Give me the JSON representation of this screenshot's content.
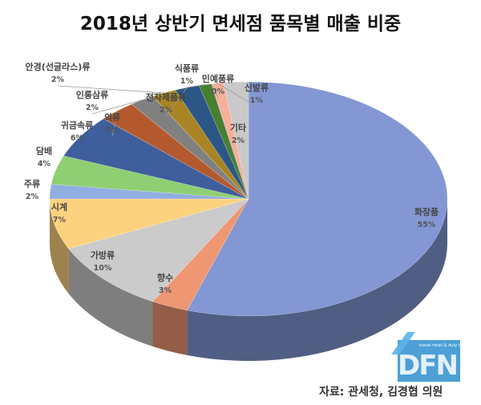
{
  "title": "2018년 상반기 면세점 품목별 매출 비중",
  "source": "자료: 관세청, 김경협 의원",
  "logo": {
    "text": "DFN",
    "tagline": "travel retail & duty free news"
  },
  "chart_data": {
    "type": "pie",
    "title": "2018년 상반기 면세점 품목별 매출 비중",
    "slices": [
      {
        "label": "화장품",
        "value": 55,
        "value_label": "55%",
        "color": "#8297d4"
      },
      {
        "label": "향수",
        "value": 3,
        "value_label": "3%",
        "color": "#ef9673"
      },
      {
        "label": "가방류",
        "value": 10,
        "value_label": "10%",
        "color": "#cbcbcb"
      },
      {
        "label": "시계",
        "value": 7,
        "value_label": "7%",
        "color": "#fdd27e"
      },
      {
        "label": "주류",
        "value": 2,
        "value_label": "2%",
        "color": "#90aee0"
      },
      {
        "label": "담배",
        "value": 4,
        "value_label": "4%",
        "color": "#8fce73"
      },
      {
        "label": "귀금속류",
        "value": 6,
        "value_label": "6%",
        "color": "#3f5e9c"
      },
      {
        "label": "의류",
        "value": 3,
        "value_label": "3%",
        "color": "#b4592e"
      },
      {
        "label": "인롱삼류",
        "value": 2,
        "value_label": "2%",
        "color": "#808080"
      },
      {
        "label": "안경(선글라스)류",
        "value": 2,
        "value_label": "2%",
        "color": "#a98425"
      },
      {
        "label": "전자제품류",
        "value": 2,
        "value_label": "2%",
        "color": "#2c5686"
      },
      {
        "label": "식품류",
        "value": 1,
        "value_label": "1%",
        "color": "#46802f"
      },
      {
        "label": "민예품류",
        "value": 0,
        "value_label": "0%",
        "color": "#7397d0"
      },
      {
        "label": "신발류",
        "value": 1,
        "value_label": "1%",
        "color": "#f6b09a"
      },
      {
        "label": "기타",
        "value": 2,
        "value_label": "2%",
        "color": "#c9c9c9"
      }
    ]
  }
}
